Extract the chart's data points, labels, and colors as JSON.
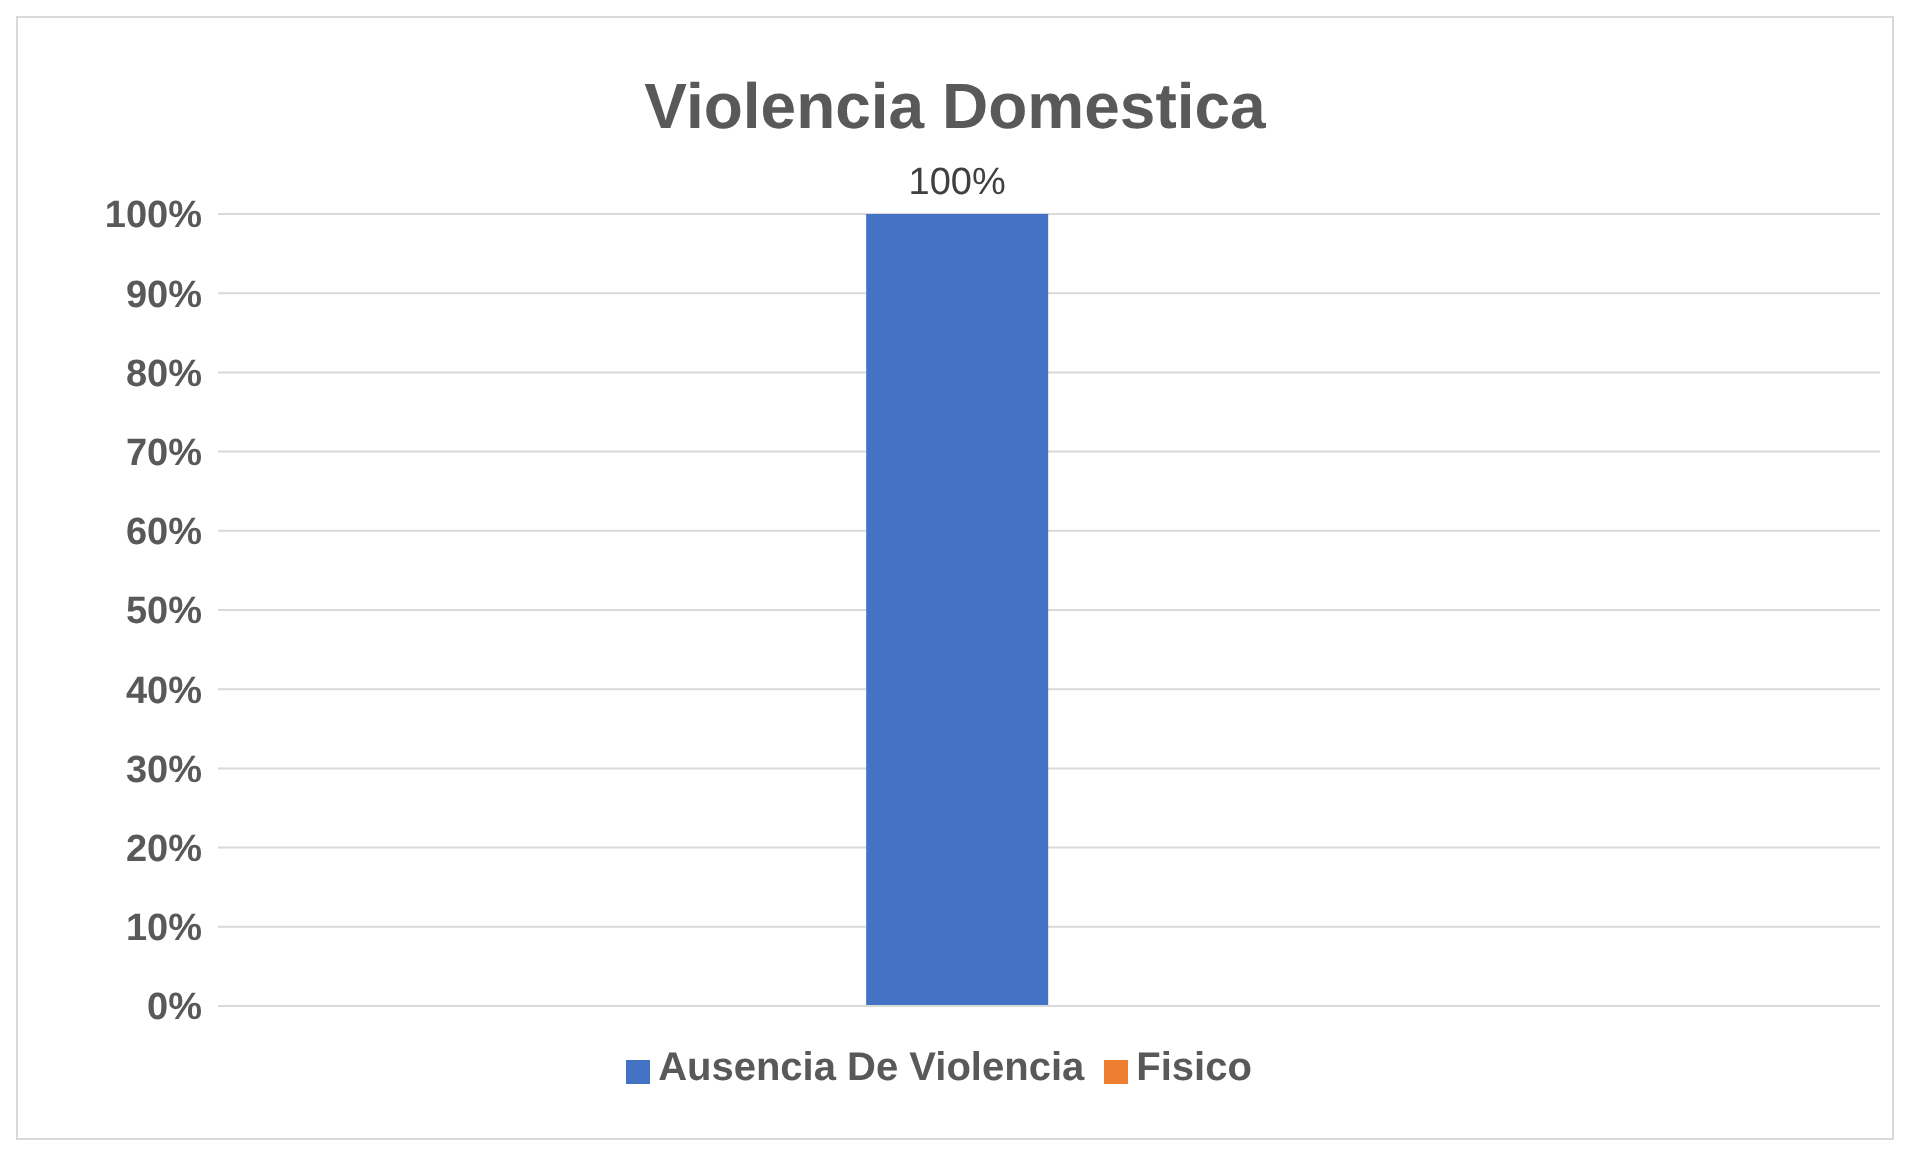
{
  "chart_data": {
    "type": "bar",
    "title": "Violencia Domestica",
    "categories": [
      null
    ],
    "series": [
      {
        "name": "Ausencia De Violencia",
        "color": "#4472c4",
        "values": [
          100
        ],
        "value_labels": [
          "100%"
        ]
      },
      {
        "name": "Fisico",
        "color": "#ed7d31",
        "values": [
          0
        ],
        "value_labels": [
          null
        ]
      }
    ],
    "ylim": [
      0,
      100
    ],
    "yticks": [
      {
        "value": 0,
        "label": "0%"
      },
      {
        "value": 10,
        "label": "10%"
      },
      {
        "value": 20,
        "label": "20%"
      },
      {
        "value": 30,
        "label": "30%"
      },
      {
        "value": 40,
        "label": "40%"
      },
      {
        "value": 50,
        "label": "50%"
      },
      {
        "value": 60,
        "label": "60%"
      },
      {
        "value": 70,
        "label": "70%"
      },
      {
        "value": 80,
        "label": "80%"
      },
      {
        "value": 90,
        "label": "90%"
      },
      {
        "value": 100,
        "label": "100%"
      }
    ],
    "grid": "y",
    "legend": "bottom"
  }
}
